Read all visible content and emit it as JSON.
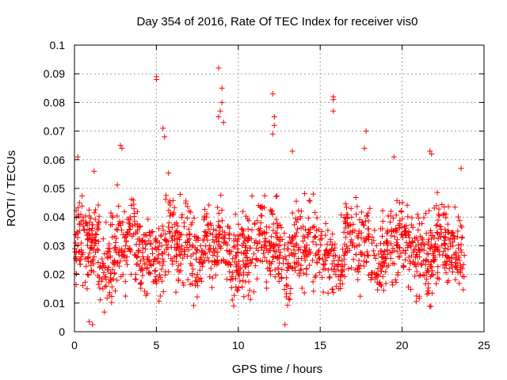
{
  "chart_data": {
    "type": "scatter",
    "title": "Day 354 of 2016, Rate Of TEC Index for receiver vis0",
    "xlabel": "GPS time / hours",
    "ylabel": "ROTI / TECUs",
    "xlim": [
      0,
      25
    ],
    "ylim": [
      0,
      0.1
    ],
    "xticks": [
      0,
      5,
      10,
      15,
      20,
      25
    ],
    "xtick_labels": [
      "0",
      "5",
      "10",
      "15",
      "20",
      "25"
    ],
    "yticks": [
      0,
      0.01,
      0.02,
      0.03,
      0.04,
      0.05,
      0.06,
      0.07,
      0.08,
      0.09,
      0.1
    ],
    "ytick_labels": [
      "0",
      "0.01",
      "0.02",
      "0.03",
      "0.04",
      "0.05",
      "0.06",
      "0.07",
      "0.08",
      "0.09",
      "0.1"
    ],
    "grid": true,
    "marker": "+",
    "marker_color": "#ff0000",
    "series": [
      {
        "name": "ROTI",
        "x_range": [
          0,
          23.8
        ],
        "typical_range": [
          0.005,
          0.045
        ],
        "density_per_hour": 70,
        "outliers": [
          {
            "x": 5.0,
            "y": 0.089
          },
          {
            "x": 5.0,
            "y": 0.088
          },
          {
            "x": 8.8,
            "y": 0.092
          },
          {
            "x": 9.0,
            "y": 0.085
          },
          {
            "x": 9.0,
            "y": 0.08
          },
          {
            "x": 8.9,
            "y": 0.077
          },
          {
            "x": 8.8,
            "y": 0.075
          },
          {
            "x": 9.1,
            "y": 0.073
          },
          {
            "x": 12.1,
            "y": 0.083
          },
          {
            "x": 12.2,
            "y": 0.075
          },
          {
            "x": 12.2,
            "y": 0.072
          },
          {
            "x": 12.1,
            "y": 0.069
          },
          {
            "x": 15.8,
            "y": 0.082
          },
          {
            "x": 15.8,
            "y": 0.081
          },
          {
            "x": 15.8,
            "y": 0.077
          },
          {
            "x": 17.8,
            "y": 0.07
          },
          {
            "x": 5.4,
            "y": 0.071
          },
          {
            "x": 5.5,
            "y": 0.068
          },
          {
            "x": 2.8,
            "y": 0.065
          },
          {
            "x": 2.9,
            "y": 0.064
          },
          {
            "x": 13.3,
            "y": 0.063
          },
          {
            "x": 17.7,
            "y": 0.064
          },
          {
            "x": 21.7,
            "y": 0.063
          },
          {
            "x": 21.8,
            "y": 0.062
          },
          {
            "x": 0.2,
            "y": 0.061
          },
          {
            "x": 19.5,
            "y": 0.061
          },
          {
            "x": 23.6,
            "y": 0.057
          },
          {
            "x": 1.2,
            "y": 0.056
          },
          {
            "x": 0.9,
            "y": 0.0035
          },
          {
            "x": 1.1,
            "y": 0.0025
          }
        ]
      }
    ]
  }
}
